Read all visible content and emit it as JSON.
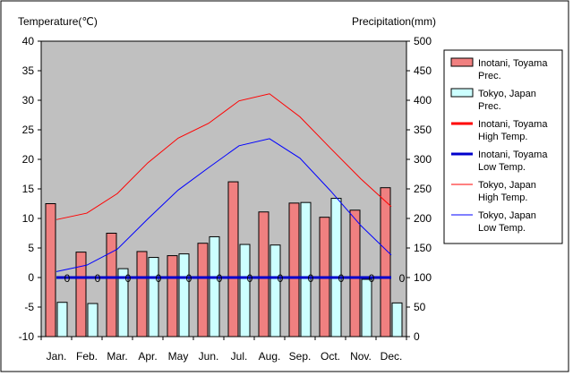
{
  "chart_data": {
    "type": "bar",
    "left_axis_title": "Temperature(℃)",
    "right_axis_title": "Precipitation(mm)",
    "categories": [
      "Jan.",
      "Feb.",
      "Mar.",
      "Apr.",
      "May",
      "Jun.",
      "Jul.",
      "Aug.",
      "Sep.",
      "Oct.",
      "Nov.",
      "Dec."
    ],
    "temp_axis": {
      "min": -10,
      "max": 40,
      "step": 5
    },
    "precip_axis": {
      "min": 0,
      "max": 500,
      "step": 50
    },
    "bar_series": [
      {
        "name": "Inotani, Toyama Prec.",
        "axis": "right",
        "color": "#f08080",
        "values": [
          225,
          143,
          175,
          144,
          137,
          158,
          262,
          211,
          226,
          202,
          214,
          252
        ]
      },
      {
        "name": "Tokyo, Japan Prec.",
        "axis": "right",
        "color": "#ccffff",
        "values": [
          58,
          56,
          115,
          134,
          140,
          169,
          156,
          155,
          227,
          234,
          97,
          57
        ]
      }
    ],
    "line_series": [
      {
        "name": "Inotani, Toyama High Temp.",
        "axis": "left",
        "color": "#ff0000",
        "width": 3,
        "values": [
          0,
          0,
          0,
          0,
          0,
          0,
          0,
          0,
          0,
          0,
          0,
          0
        ]
      },
      {
        "name": "Inotani, Toyama Low Temp.",
        "axis": "left",
        "color": "#0000cc",
        "width": 3,
        "values": [
          0,
          0,
          0,
          0,
          0,
          0,
          0,
          0,
          0,
          0,
          0,
          0
        ]
      },
      {
        "name": "Tokyo, Japan High Temp.",
        "axis": "left",
        "color": "#ff0000",
        "width": 1,
        "values": [
          9.8,
          10.9,
          14.2,
          19.4,
          23.6,
          26.1,
          29.9,
          31.1,
          27.2,
          21.9,
          16.7,
          12.0
        ]
      },
      {
        "name": "Tokyo, Japan Low Temp.",
        "axis": "left",
        "color": "#0000ff",
        "width": 1,
        "values": [
          1.0,
          2.1,
          4.8,
          9.9,
          14.8,
          18.6,
          22.3,
          23.5,
          20.2,
          14.7,
          8.8,
          3.8
        ]
      }
    ],
    "point_labels": [
      "0",
      "0",
      "0",
      "0",
      "0",
      "0",
      "0",
      "0",
      "0",
      "0",
      "0",
      "0"
    ],
    "legend": {
      "position": "right",
      "entries": [
        {
          "lines": [
            "Inotani, Toyama",
            "Prec."
          ],
          "kind": "bar",
          "color": "#f08080"
        },
        {
          "lines": [
            "Tokyo, Japan",
            "Prec."
          ],
          "kind": "bar",
          "color": "#ccffff"
        },
        {
          "lines": [
            "Inotani, Toyama",
            "High Temp."
          ],
          "kind": "line",
          "color": "#ff0000",
          "width": 3
        },
        {
          "lines": [
            "Inotani, Toyama",
            "Low Temp."
          ],
          "kind": "line",
          "color": "#0000cc",
          "width": 3
        },
        {
          "lines": [
            "Tokyo, Japan",
            "High Temp."
          ],
          "kind": "line",
          "color": "#ff0000",
          "width": 1
        },
        {
          "lines": [
            "Tokyo, Japan",
            "Low Temp."
          ],
          "kind": "line",
          "color": "#0000ff",
          "width": 1
        }
      ]
    },
    "plot_background": "#c0c0c0",
    "grid": false
  }
}
